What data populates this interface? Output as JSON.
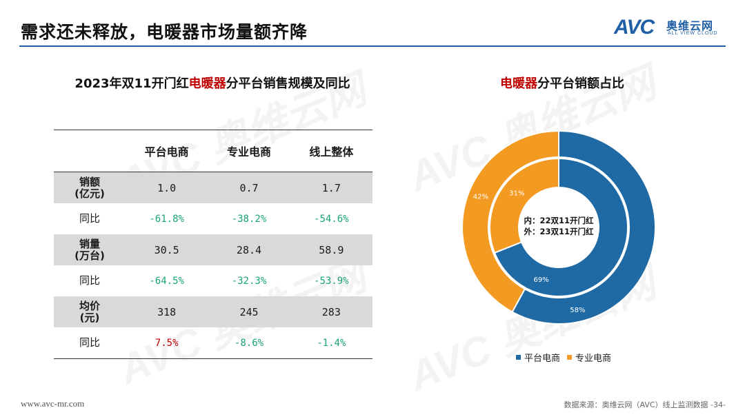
{
  "page": {
    "title": "需求还未释放，电暖器市场量额齐降"
  },
  "logo": {
    "mark": "AVC",
    "name_cn": "奥维云网",
    "name_en": "ALL VIEW CLOUD"
  },
  "table": {
    "title_prefix": "2023年双11开门红",
    "title_highlight": "电暖器",
    "title_suffix": "分平台销售规模及同比",
    "columns": [
      "",
      "平台电商",
      "专业电商",
      "线上整体"
    ],
    "rows": [
      {
        "label_line1": "销额",
        "label_line2": "(亿元)",
        "values": [
          "1.0",
          "0.7",
          "1.7"
        ],
        "kind": "value"
      },
      {
        "label_line1": "同比",
        "label_line2": "",
        "values": [
          "-61.8%",
          "-38.2%",
          "-54.6%"
        ],
        "kind": "yoy",
        "colors": [
          "green",
          "green",
          "green"
        ]
      },
      {
        "label_line1": "销量",
        "label_line2": "(万台)",
        "values": [
          "30.5",
          "28.4",
          "58.9"
        ],
        "kind": "value"
      },
      {
        "label_line1": "同比",
        "label_line2": "",
        "values": [
          "-64.5%",
          "-32.3%",
          "-53.9%"
        ],
        "kind": "yoy",
        "colors": [
          "green",
          "green",
          "green"
        ]
      },
      {
        "label_line1": "均价",
        "label_line2": "(元)",
        "values": [
          "318",
          "245",
          "283"
        ],
        "kind": "value"
      },
      {
        "label_line1": "同比",
        "label_line2": "",
        "values": [
          "7.5%",
          "-8.6%",
          "-1.4%"
        ],
        "kind": "yoy",
        "colors": [
          "red",
          "green",
          "green"
        ]
      }
    ]
  },
  "chart_data": {
    "type": "pie",
    "title_highlight": "电暖器",
    "title_suffix": "分平台销额占比",
    "center_label_line1": "内：22双11开门红",
    "center_label_line2": "外：23双11开门红",
    "categories": [
      "平台电商",
      "专业电商"
    ],
    "series": [
      {
        "name": "内：22双11开门红",
        "values": [
          69,
          31
        ],
        "labels": [
          "69%",
          "31%"
        ]
      },
      {
        "name": "外：23双11开门红",
        "values": [
          58,
          42
        ],
        "labels": [
          "58%",
          "42%"
        ]
      }
    ],
    "colors": [
      "#1f6aa5",
      "#f39a22"
    ],
    "legend_position": "bottom"
  },
  "footer": {
    "website": "www.avc-mr.com",
    "source": "数据来源：奥维云网（AVC）线上监测数据 -34-"
  }
}
